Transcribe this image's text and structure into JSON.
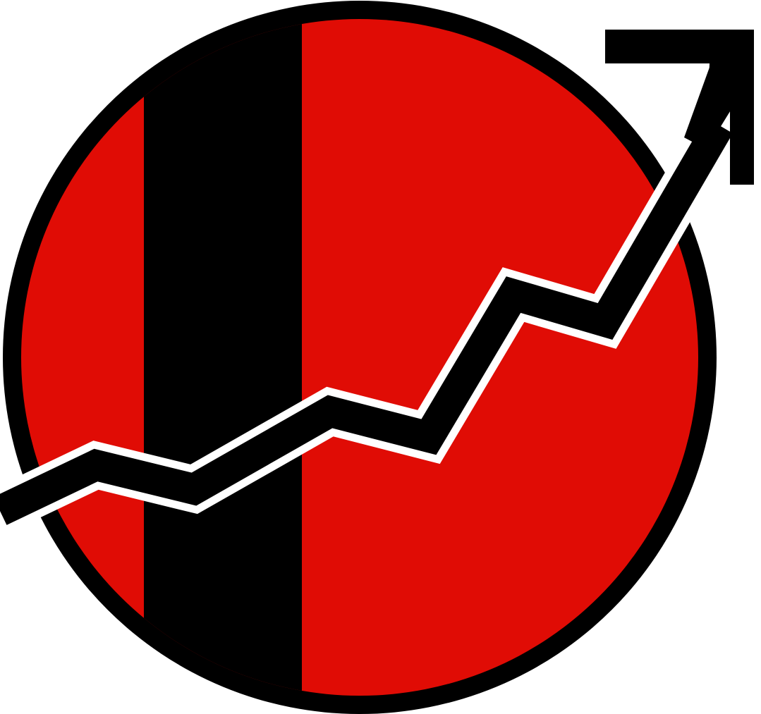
{
  "logo": {
    "icon": "growth-chart-arrow-icon",
    "colors": {
      "circle_fill": "#e00c05",
      "circle_outline": "#000000",
      "band": "#000000",
      "trend_line": "#000000",
      "trend_outline": "#ffffff",
      "arrow_head": "#000000",
      "background": "#ffffff"
    }
  }
}
